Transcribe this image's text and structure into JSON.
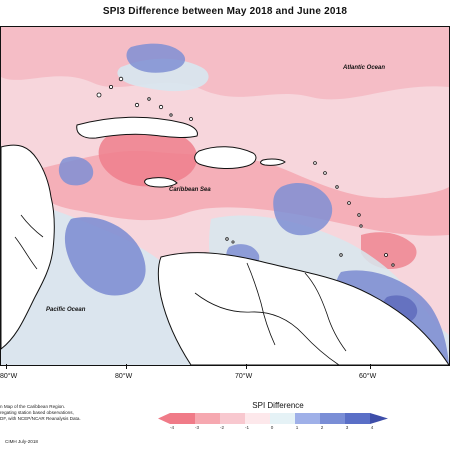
{
  "header": {
    "title": "SPI3 Difference between May 2018 and June 2018"
  },
  "map": {
    "region": "Caribbean",
    "ocean_labels": {
      "atlantic": "Atlantic Ocean",
      "caribbean": "Caribbean Sea",
      "pacific": "Pacific Ocean"
    },
    "longitude_ticks": [
      "80°W",
      "80°W",
      "70°W",
      "60°W"
    ],
    "colors": {
      "strong_pink": "#ee7f8c",
      "mid_pink": "#f4a8b2",
      "light_pink": "#f7d6dc",
      "pale_blue": "#d7e7ef",
      "blue": "#7f8fd3",
      "dark_blue": "#5a65b8",
      "land": "#ffffff",
      "coastline": "#111111"
    }
  },
  "caption": {
    "line1": "n Map of the Caribbean Region.",
    "line2": "regating station based observations,",
    "line3": "DF, with NCEP/NCAR Reanalysis Data.",
    "credit": "CIMH July-2018"
  },
  "legend": {
    "title": "SPI Difference",
    "ticks": [
      "-4",
      "-3",
      "-2",
      "-1",
      "0",
      "1",
      "2",
      "3",
      "4"
    ],
    "colors": [
      "#f07b88",
      "#f6a8b0",
      "#f8c8cf",
      "#fde8eb",
      "#e5f2f6",
      "#9fb0e8",
      "#7a8ed6",
      "#5a6fc7",
      "#3e4ea9"
    ]
  }
}
